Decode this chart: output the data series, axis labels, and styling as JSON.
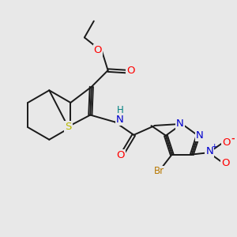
{
  "background_color": "#e8e8e8",
  "bond_color": "#1a1a1a",
  "bw": 1.4,
  "atom_colors": {
    "O": "#ff0000",
    "N": "#0000cd",
    "S": "#b8b800",
    "Br": "#b87800",
    "H": "#008080",
    "C": "#1a1a1a"
  },
  "fs": 8.5
}
